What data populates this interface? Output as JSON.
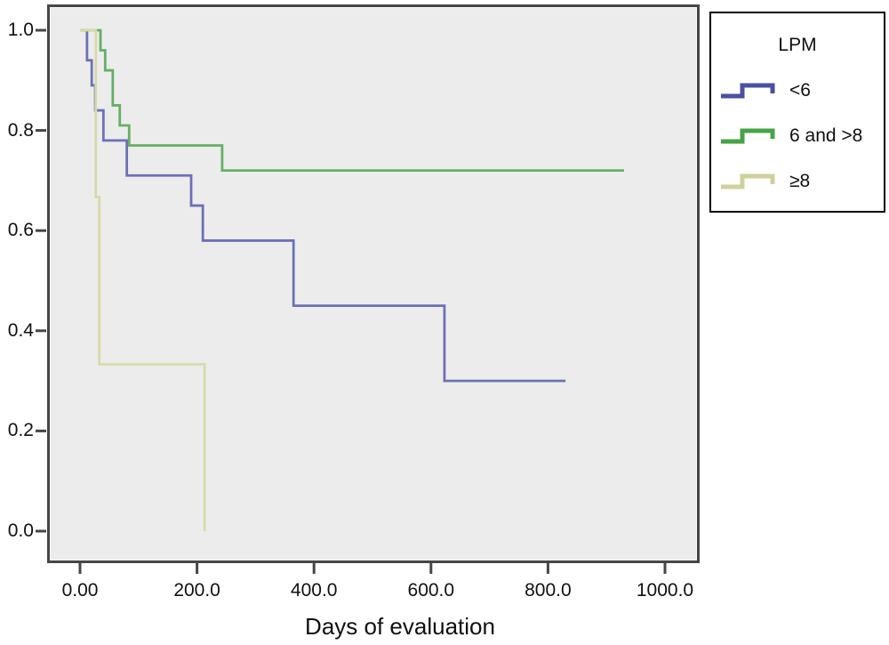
{
  "figure": {
    "background": "#ffffff",
    "plot_background": "#ececec",
    "border_color": "#464646",
    "tick_color": "#464646",
    "text_color": "#111111"
  },
  "chart_data": {
    "type": "line",
    "subtype": "kaplan-meier-step-survival",
    "title": "",
    "xlabel": "Days of evaluation",
    "ylabel": "",
    "xlim": [
      -55,
      1060
    ],
    "ylim": [
      0.0,
      1.05
    ],
    "grid": false,
    "legend_title": "LPM",
    "legend_position": "top-right-outside",
    "x_ticks": [
      {
        "value": 0,
        "label": "0.00"
      },
      {
        "value": 200,
        "label": "200.0"
      },
      {
        "value": 400,
        "label": "400.0"
      },
      {
        "value": 600,
        "label": "600.0"
      },
      {
        "value": 800,
        "label": "800.0"
      },
      {
        "value": 1000,
        "label": "1000.0"
      }
    ],
    "y_ticks": [
      {
        "value": 0.0,
        "label": "0.0"
      },
      {
        "value": 0.2,
        "label": "0.2"
      },
      {
        "value": 0.4,
        "label": "0.4"
      },
      {
        "value": 0.6,
        "label": "0.6"
      },
      {
        "value": 0.8,
        "label": "0.8"
      },
      {
        "value": 1.0,
        "label": "1.0"
      }
    ],
    "series": [
      {
        "key": "under-6",
        "name": "<6",
        "line_color": "#6b71b5",
        "legend_color": "#4a51a1",
        "points": [
          [
            0,
            1.0
          ],
          [
            12,
            1.0
          ],
          [
            12,
            0.94
          ],
          [
            20,
            0.94
          ],
          [
            20,
            0.89
          ],
          [
            26,
            0.89
          ],
          [
            26,
            0.84
          ],
          [
            40,
            0.84
          ],
          [
            40,
            0.78
          ],
          [
            80,
            0.78
          ],
          [
            80,
            0.71
          ],
          [
            190,
            0.71
          ],
          [
            190,
            0.65
          ],
          [
            210,
            0.65
          ],
          [
            210,
            0.58
          ],
          [
            365,
            0.58
          ],
          [
            365,
            0.45
          ],
          [
            623,
            0.45
          ],
          [
            623,
            0.3
          ],
          [
            830,
            0.3
          ]
        ]
      },
      {
        "key": "6-and-gt-8",
        "name": "6 and >8",
        "line_color": "#66af66",
        "legend_color": "#47a347",
        "points": [
          [
            0,
            1.0
          ],
          [
            35,
            1.0
          ],
          [
            35,
            0.96
          ],
          [
            43,
            0.96
          ],
          [
            43,
            0.92
          ],
          [
            56,
            0.92
          ],
          [
            56,
            0.85
          ],
          [
            68,
            0.85
          ],
          [
            68,
            0.81
          ],
          [
            84,
            0.81
          ],
          [
            84,
            0.77
          ],
          [
            243,
            0.77
          ],
          [
            243,
            0.72
          ],
          [
            930,
            0.72
          ]
        ]
      },
      {
        "key": "ge-8",
        "name": "≥8",
        "line_color": "#d8d9ab",
        "legend_color": "#cfd09c",
        "points": [
          [
            0,
            1.0
          ],
          [
            27,
            1.0
          ],
          [
            27,
            0.667
          ],
          [
            33,
            0.667
          ],
          [
            33,
            0.333
          ],
          [
            213,
            0.333
          ],
          [
            213,
            0.0
          ]
        ]
      }
    ]
  }
}
